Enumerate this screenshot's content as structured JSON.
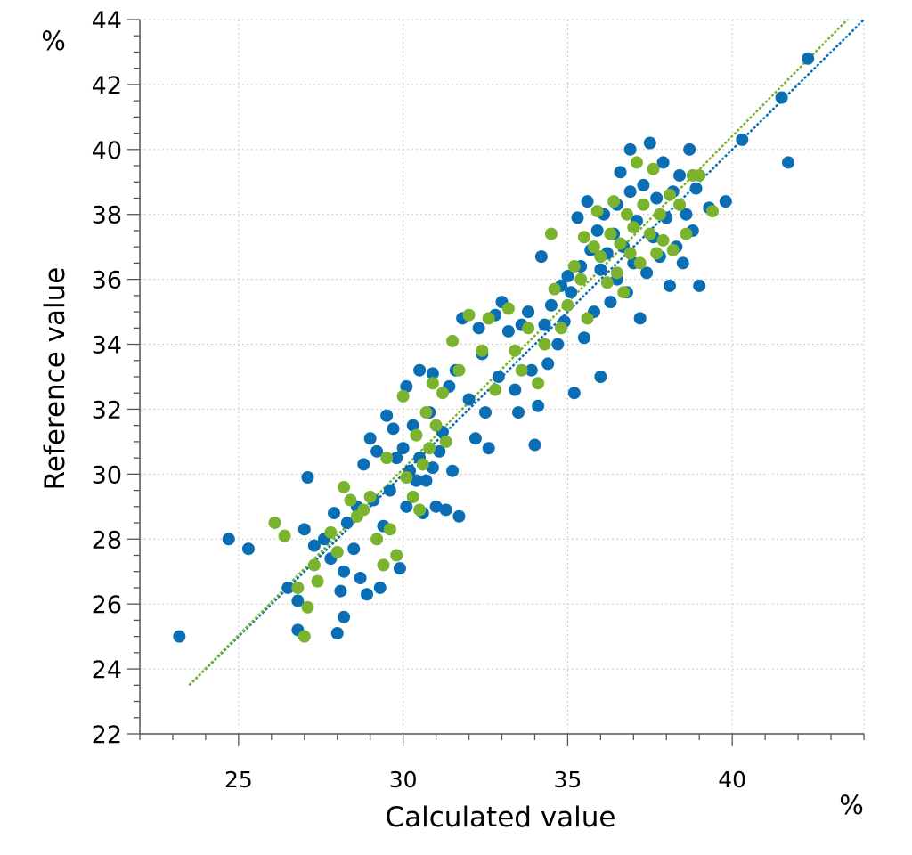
{
  "chart_data": {
    "type": "scatter",
    "title": "",
    "xlabel": "Calculated value",
    "ylabel": "Reference value",
    "x_unit": "%",
    "y_unit": "%",
    "xlim": [
      22,
      44
    ],
    "ylim": [
      22,
      44
    ],
    "x_ticks": [
      25,
      30,
      35,
      40
    ],
    "y_ticks": [
      22,
      24,
      26,
      28,
      30,
      32,
      34,
      36,
      38,
      40,
      42,
      44
    ],
    "grid": true,
    "legend": "none",
    "colors": {
      "series_a": "#0a6eb4",
      "series_b": "#7ab32e",
      "grid": "#c8c8c8",
      "axis": "#555555"
    },
    "fit_lines": [
      {
        "series": "series_a",
        "from": [
          23.5,
          23.5
        ],
        "to": [
          44.0,
          44.0
        ]
      },
      {
        "series": "series_b",
        "from": [
          23.5,
          23.5
        ],
        "to": [
          43.5,
          44.0
        ]
      }
    ],
    "series": [
      {
        "key": "series_a",
        "points": [
          [
            23.2,
            25.0
          ],
          [
            24.7,
            28.0
          ],
          [
            25.3,
            27.7
          ],
          [
            26.5,
            26.5
          ],
          [
            26.8,
            25.2
          ],
          [
            26.8,
            26.1
          ],
          [
            27.0,
            28.3
          ],
          [
            27.1,
            29.9
          ],
          [
            27.3,
            27.8
          ],
          [
            27.6,
            28.0
          ],
          [
            27.8,
            27.4
          ],
          [
            27.9,
            28.8
          ],
          [
            28.0,
            25.1
          ],
          [
            28.1,
            26.4
          ],
          [
            28.2,
            25.6
          ],
          [
            28.2,
            27.0
          ],
          [
            28.3,
            28.5
          ],
          [
            28.5,
            27.7
          ],
          [
            28.6,
            29.0
          ],
          [
            28.7,
            26.8
          ],
          [
            28.8,
            30.3
          ],
          [
            28.9,
            26.3
          ],
          [
            29.0,
            31.1
          ],
          [
            29.1,
            29.2
          ],
          [
            29.2,
            30.7
          ],
          [
            29.3,
            26.5
          ],
          [
            29.4,
            28.4
          ],
          [
            29.5,
            31.8
          ],
          [
            29.6,
            29.5
          ],
          [
            29.7,
            31.4
          ],
          [
            29.8,
            30.5
          ],
          [
            29.9,
            27.1
          ],
          [
            30.0,
            30.8
          ],
          [
            30.1,
            29.0
          ],
          [
            30.1,
            32.7
          ],
          [
            30.2,
            30.1
          ],
          [
            30.3,
            31.5
          ],
          [
            30.4,
            29.8
          ],
          [
            30.5,
            30.5
          ],
          [
            30.5,
            33.2
          ],
          [
            30.6,
            28.8
          ],
          [
            30.7,
            29.8
          ],
          [
            30.8,
            31.9
          ],
          [
            30.9,
            30.2
          ],
          [
            30.9,
            33.1
          ],
          [
            31.0,
            29.0
          ],
          [
            31.1,
            30.7
          ],
          [
            31.2,
            31.3
          ],
          [
            31.3,
            28.9
          ],
          [
            31.4,
            32.7
          ],
          [
            31.5,
            30.1
          ],
          [
            31.6,
            33.2
          ],
          [
            31.7,
            28.7
          ],
          [
            31.8,
            34.8
          ],
          [
            32.0,
            32.3
          ],
          [
            32.2,
            31.1
          ],
          [
            32.3,
            34.5
          ],
          [
            32.4,
            33.7
          ],
          [
            32.5,
            31.9
          ],
          [
            32.6,
            30.8
          ],
          [
            32.8,
            34.9
          ],
          [
            32.9,
            33.0
          ],
          [
            33.0,
            35.3
          ],
          [
            33.2,
            34.4
          ],
          [
            33.4,
            32.6
          ],
          [
            33.5,
            31.9
          ],
          [
            33.6,
            34.6
          ],
          [
            33.8,
            35.0
          ],
          [
            33.9,
            33.2
          ],
          [
            34.0,
            30.9
          ],
          [
            34.1,
            32.1
          ],
          [
            34.2,
            36.7
          ],
          [
            34.3,
            34.6
          ],
          [
            34.4,
            33.4
          ],
          [
            34.5,
            35.2
          ],
          [
            34.7,
            34.0
          ],
          [
            34.8,
            35.8
          ],
          [
            34.9,
            34.7
          ],
          [
            35.0,
            36.1
          ],
          [
            35.1,
            35.6
          ],
          [
            35.2,
            32.5
          ],
          [
            35.3,
            37.9
          ],
          [
            35.4,
            36.4
          ],
          [
            35.5,
            34.2
          ],
          [
            35.6,
            38.4
          ],
          [
            35.7,
            36.9
          ],
          [
            35.8,
            35.0
          ],
          [
            35.9,
            37.5
          ],
          [
            36.0,
            36.3
          ],
          [
            36.0,
            33.0
          ],
          [
            36.1,
            38.0
          ],
          [
            36.2,
            36.8
          ],
          [
            36.3,
            35.3
          ],
          [
            36.4,
            37.4
          ],
          [
            36.5,
            38.3
          ],
          [
            36.5,
            36.0
          ],
          [
            36.6,
            39.3
          ],
          [
            36.7,
            37.0
          ],
          [
            36.8,
            35.6
          ],
          [
            36.9,
            38.7
          ],
          [
            36.9,
            40.0
          ],
          [
            37.0,
            36.5
          ],
          [
            37.1,
            37.8
          ],
          [
            37.2,
            34.8
          ],
          [
            37.3,
            38.9
          ],
          [
            37.4,
            36.2
          ],
          [
            37.5,
            40.2
          ],
          [
            37.6,
            37.3
          ],
          [
            37.7,
            38.5
          ],
          [
            37.8,
            36.7
          ],
          [
            37.9,
            39.6
          ],
          [
            38.0,
            37.9
          ],
          [
            38.1,
            35.8
          ],
          [
            38.2,
            38.7
          ],
          [
            38.3,
            37.0
          ],
          [
            38.4,
            39.2
          ],
          [
            38.5,
            36.5
          ],
          [
            38.6,
            38.0
          ],
          [
            38.7,
            40.0
          ],
          [
            38.8,
            37.5
          ],
          [
            38.9,
            38.8
          ],
          [
            39.0,
            35.8
          ],
          [
            39.3,
            38.2
          ],
          [
            39.8,
            38.4
          ],
          [
            40.3,
            40.3
          ],
          [
            41.5,
            41.6
          ],
          [
            41.7,
            39.6
          ],
          [
            42.3,
            42.8
          ]
        ]
      },
      {
        "key": "series_b",
        "points": [
          [
            26.1,
            28.5
          ],
          [
            26.4,
            28.1
          ],
          [
            26.8,
            26.5
          ],
          [
            27.0,
            25.0
          ],
          [
            27.1,
            25.9
          ],
          [
            27.3,
            27.2
          ],
          [
            27.4,
            26.7
          ],
          [
            27.8,
            28.2
          ],
          [
            28.0,
            27.6
          ],
          [
            28.2,
            29.6
          ],
          [
            28.4,
            29.2
          ],
          [
            28.6,
            28.7
          ],
          [
            28.8,
            28.9
          ],
          [
            29.0,
            29.3
          ],
          [
            29.2,
            28.0
          ],
          [
            29.4,
            27.2
          ],
          [
            29.5,
            30.5
          ],
          [
            29.6,
            28.3
          ],
          [
            29.8,
            27.5
          ],
          [
            30.0,
            32.4
          ],
          [
            30.1,
            29.9
          ],
          [
            30.3,
            29.3
          ],
          [
            30.4,
            31.2
          ],
          [
            30.5,
            28.9
          ],
          [
            30.6,
            30.3
          ],
          [
            30.7,
            31.9
          ],
          [
            30.8,
            30.8
          ],
          [
            30.9,
            32.8
          ],
          [
            31.0,
            31.5
          ],
          [
            31.2,
            32.5
          ],
          [
            31.3,
            31.0
          ],
          [
            31.5,
            34.1
          ],
          [
            31.7,
            33.2
          ],
          [
            32.0,
            34.9
          ],
          [
            32.4,
            33.8
          ],
          [
            32.6,
            34.8
          ],
          [
            32.8,
            32.6
          ],
          [
            33.2,
            35.1
          ],
          [
            33.4,
            33.8
          ],
          [
            33.6,
            33.2
          ],
          [
            33.8,
            34.5
          ],
          [
            34.1,
            32.8
          ],
          [
            34.3,
            34.0
          ],
          [
            34.5,
            37.4
          ],
          [
            34.6,
            35.7
          ],
          [
            34.8,
            34.5
          ],
          [
            35.0,
            35.2
          ],
          [
            35.2,
            36.4
          ],
          [
            35.4,
            36.0
          ],
          [
            35.5,
            37.3
          ],
          [
            35.6,
            34.8
          ],
          [
            35.8,
            37.0
          ],
          [
            35.9,
            38.1
          ],
          [
            36.0,
            36.7
          ],
          [
            36.2,
            35.9
          ],
          [
            36.3,
            37.4
          ],
          [
            36.4,
            38.4
          ],
          [
            36.5,
            36.2
          ],
          [
            36.6,
            37.1
          ],
          [
            36.7,
            35.6
          ],
          [
            36.8,
            38.0
          ],
          [
            36.9,
            36.8
          ],
          [
            37.0,
            37.6
          ],
          [
            37.1,
            39.6
          ],
          [
            37.2,
            36.5
          ],
          [
            37.3,
            38.3
          ],
          [
            37.5,
            37.4
          ],
          [
            37.6,
            39.4
          ],
          [
            37.7,
            36.8
          ],
          [
            37.8,
            38.0
          ],
          [
            37.9,
            37.2
          ],
          [
            38.1,
            38.6
          ],
          [
            38.2,
            36.9
          ],
          [
            38.4,
            38.3
          ],
          [
            38.6,
            37.4
          ],
          [
            38.8,
            39.2
          ],
          [
            39.0,
            39.2
          ],
          [
            39.4,
            38.1
          ]
        ]
      }
    ]
  }
}
